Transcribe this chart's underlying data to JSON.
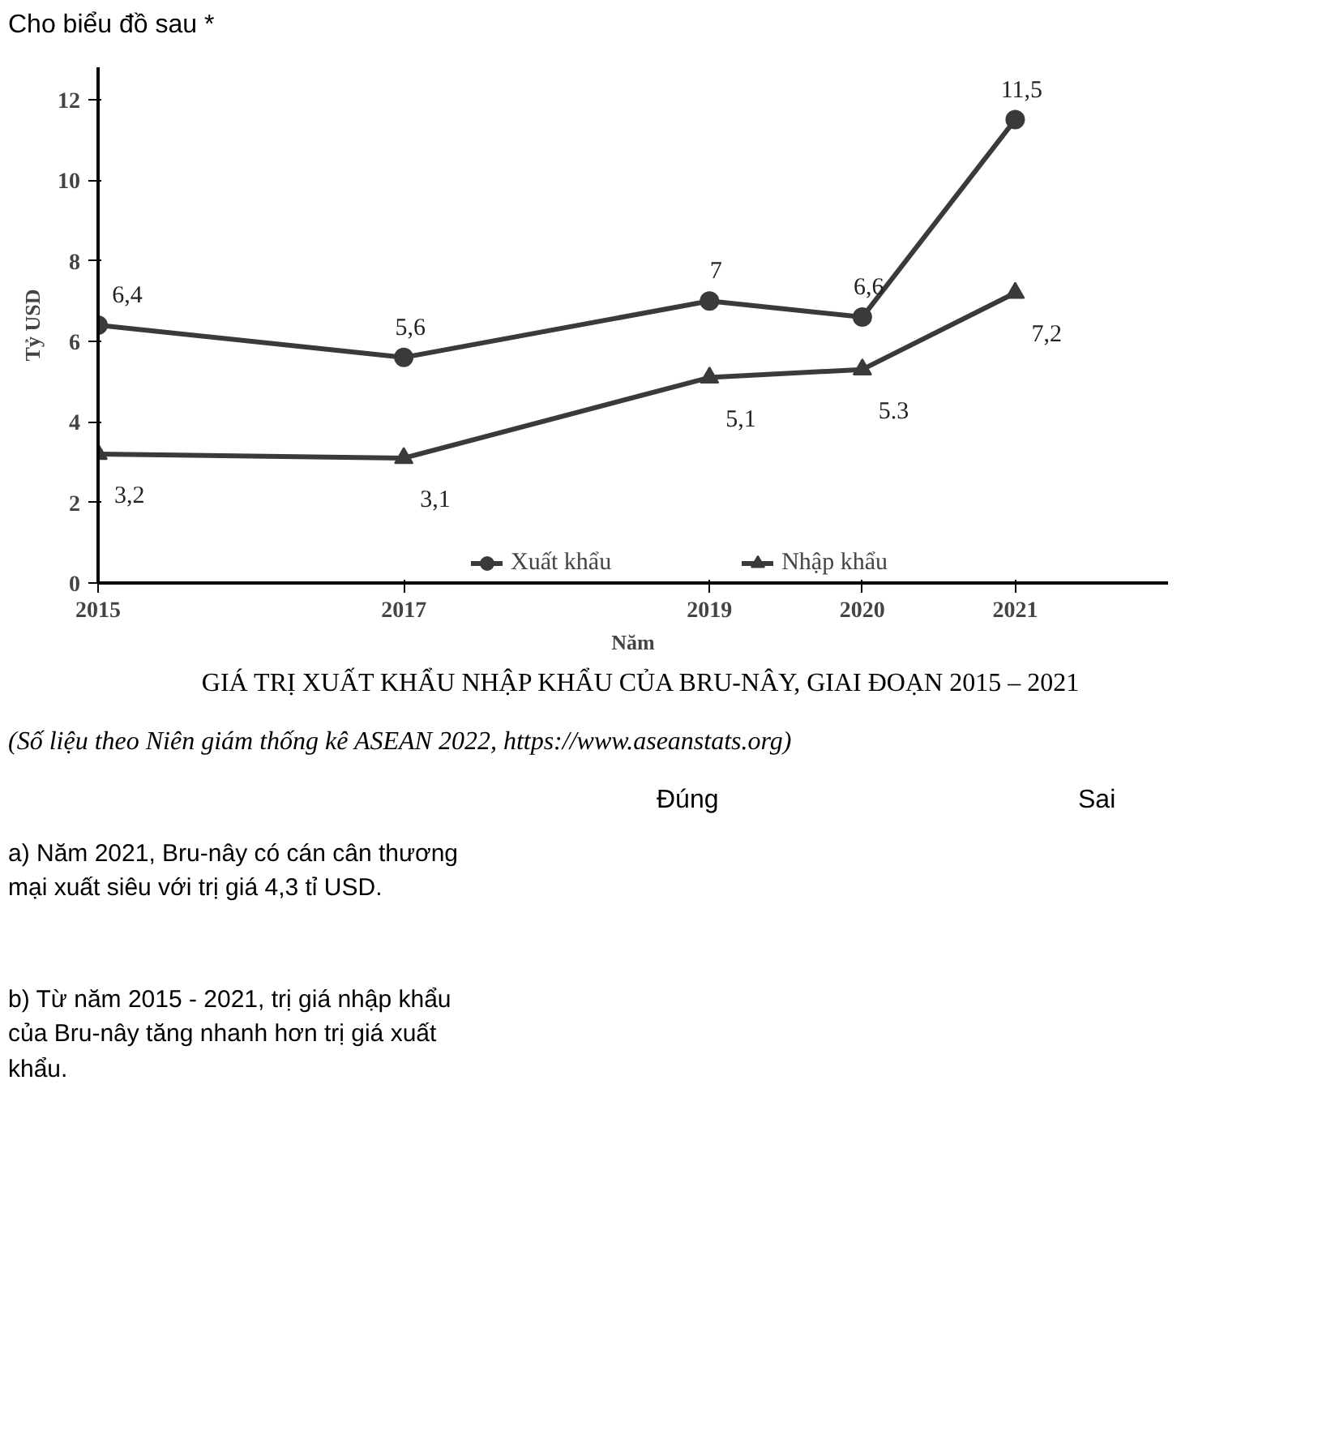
{
  "chart_data": {
    "type": "line",
    "title": "GIÁ TRỊ XUẤT KHẨU NHẬP KHẨU CỦA BRU-NÂY, GIAI ĐOẠN 2015 – 2021",
    "subtitle": "(Số liệu theo Niên giám thống kê ASEAN 2022, https://www.aseanstats.org)",
    "xlabel": "Năm",
    "ylabel": "Tỷ USD",
    "x": [
      2015,
      2017,
      2019,
      2020,
      2021
    ],
    "xlim": [
      2015,
      2022
    ],
    "xticks": [
      2015,
      2017,
      2019,
      2020,
      2021
    ],
    "ylim": [
      0,
      12.8
    ],
    "yticks": [
      0,
      2,
      4,
      6,
      8,
      10,
      12
    ],
    "series": [
      {
        "name": "Xuất khẩu",
        "color": "#3a3a3a",
        "marker": "circle",
        "values": [
          6.4,
          5.6,
          7,
          6.6,
          11.5
        ],
        "value_labels": [
          "6,4",
          "5,6",
          "7",
          "6,6",
          "11,5"
        ]
      },
      {
        "name": "Nhập khẩu",
        "color": "#3a3a3a",
        "marker": "triangle",
        "values": [
          3.2,
          3.1,
          5.1,
          5.3,
          7.2
        ],
        "value_labels": [
          "3,2",
          "3,1",
          "5,1",
          "5.3",
          "7,2"
        ]
      }
    ],
    "legend": "bottom",
    "grid": false,
    "line_style": "solid",
    "annotations": [
      "Cho biểu đồ sau *",
      "Đúng",
      "Sai",
      "a) Năm 2021, Bru-nây có cán cân thương mại xuất siêu với trị giá 4,3 tỉ USD.",
      "b) Từ năm 2015 - 2021, trị giá nhập khẩu của Bru-nây tăng nhanh hơn trị giá xuất khẩu."
    ]
  }
}
